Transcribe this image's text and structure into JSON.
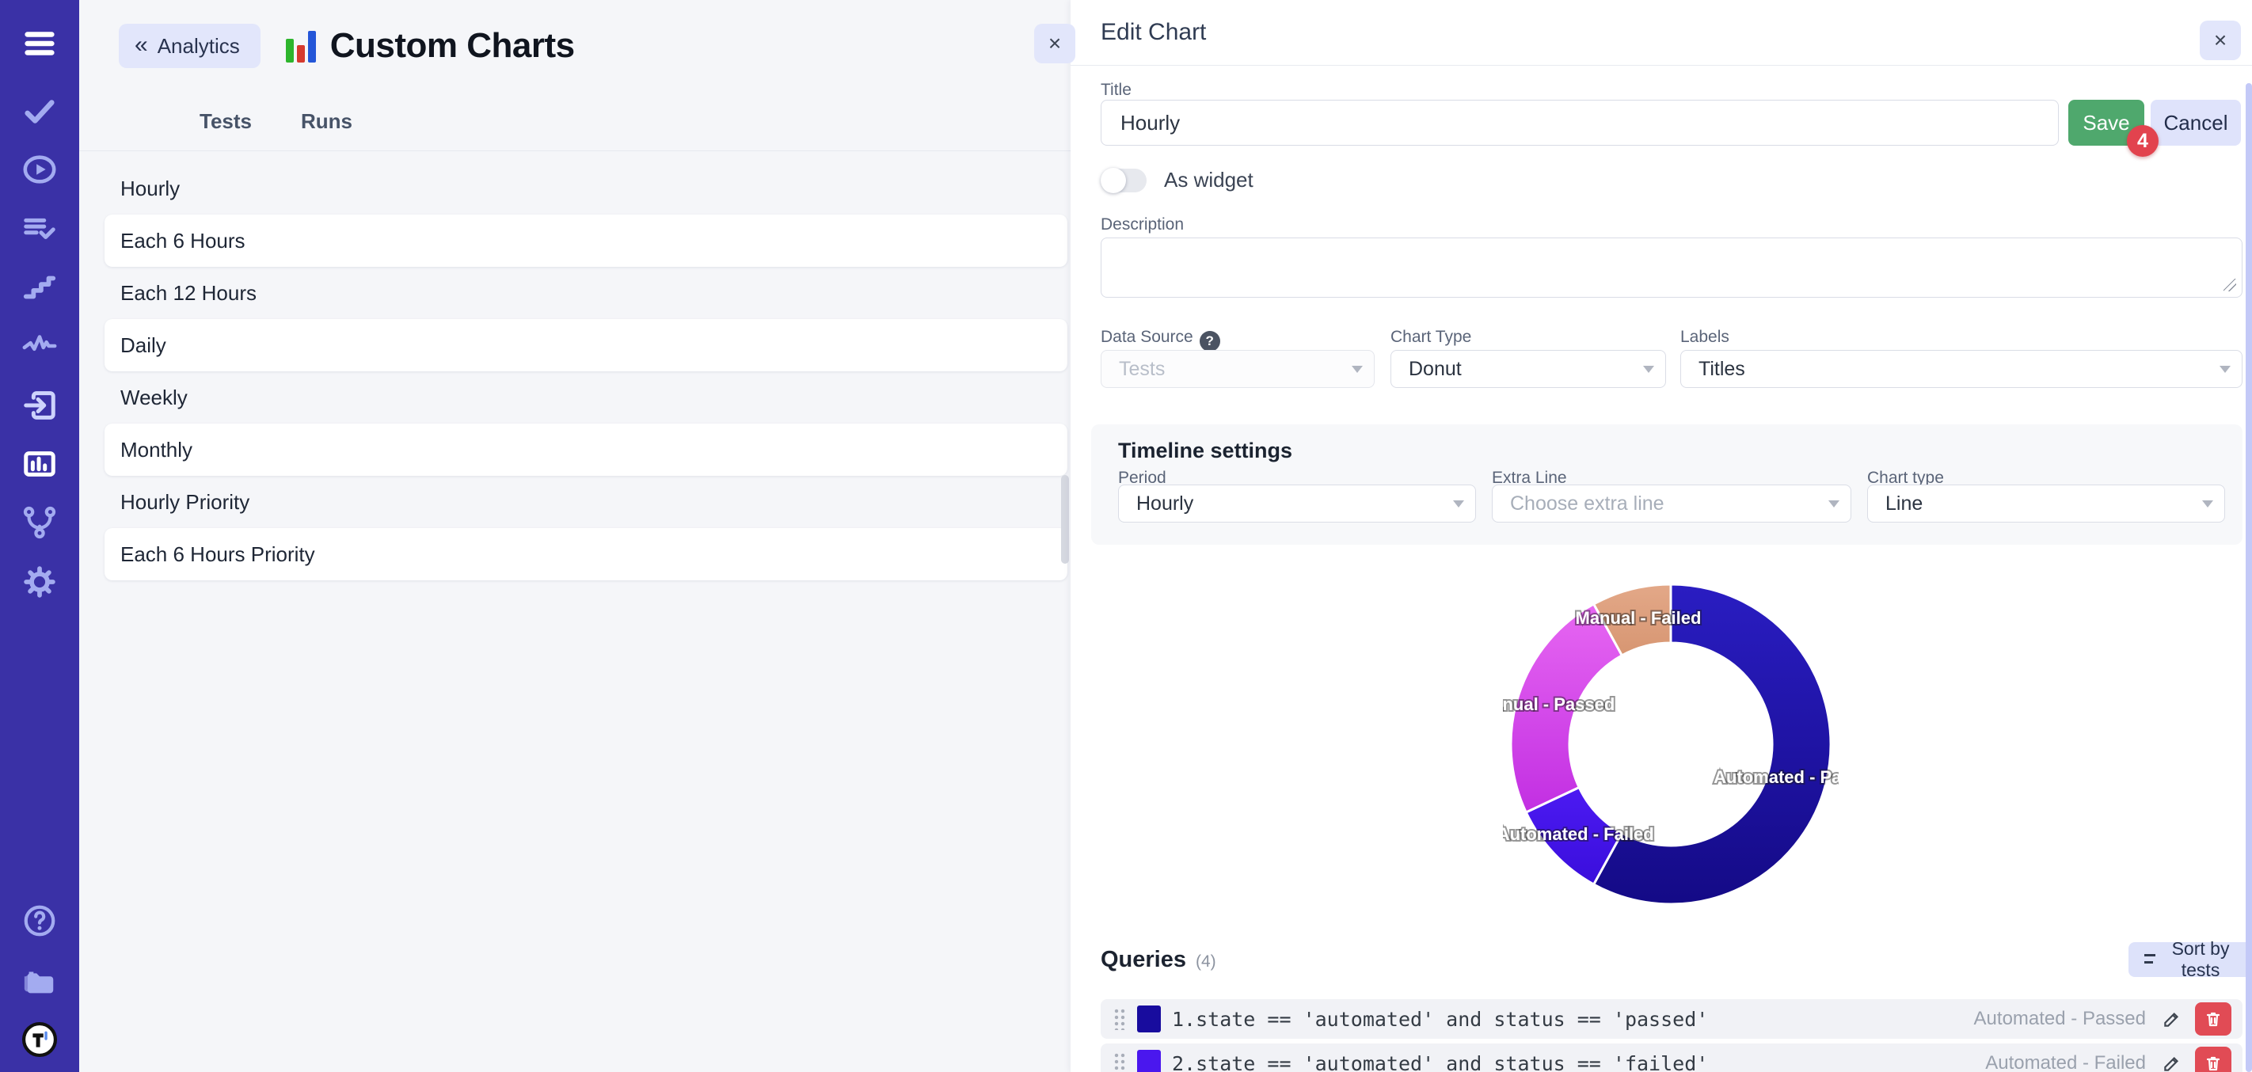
{
  "header": {
    "back_chevron": "«",
    "back_label": "Analytics",
    "title": "Custom Charts"
  },
  "tabs": [
    {
      "label": "Tests",
      "active": true
    },
    {
      "label": "Runs",
      "active": false
    }
  ],
  "charts_list": [
    "Hourly",
    "Each 6 Hours",
    "Each 12 Hours",
    "Daily",
    "Weekly",
    "Monthly",
    "Hourly Priority",
    "Each 6 Hours Priority"
  ],
  "left_pane": {
    "close_glyph": "×"
  },
  "sidebar_icons": [
    "hamburger-icon",
    "check-icon",
    "play-circle-icon",
    "list-check-icon",
    "steps-icon",
    "pulse-icon",
    "import-icon",
    "analytics-icon",
    "fork-icon",
    "gear-icon",
    "help-icon",
    "folder-icon",
    "logo-icon"
  ],
  "edit_panel": {
    "title": "Edit Chart",
    "close_glyph": "×",
    "fields": {
      "title_label": "Title",
      "title_value": "Hourly",
      "save_label": "Save",
      "cancel_label": "Cancel",
      "badge": "4",
      "as_widget_label": "As widget",
      "as_widget_on": false,
      "description_label": "Description",
      "description_value": "",
      "data_source_label": "Data Source",
      "data_source_help": "?",
      "data_source_value": "Tests",
      "chart_type_label": "Chart Type",
      "chart_type_value": "Donut",
      "labels_label": "Labels",
      "labels_value": "Titles"
    },
    "timeline": {
      "heading": "Timeline settings",
      "period_label": "Period",
      "period_value": "Hourly",
      "extra_line_label": "Extra Line",
      "extra_line_placeholder": "Choose extra line",
      "chart_type_label": "Chart type",
      "chart_type_value": "Line"
    },
    "queries": {
      "heading": "Queries",
      "count": "(4)",
      "sort_label": "Sort by tests",
      "items": [
        {
          "color": "#180c9e",
          "text": "1.state == 'automated' and status == 'passed'",
          "label": "Automated - Passed"
        },
        {
          "color": "#4a17ee",
          "text": "2.state == 'automated' and status == 'failed'",
          "label": "Automated - Failed"
        }
      ]
    }
  },
  "chart_data": {
    "type": "donut",
    "title": "Hourly",
    "labels": [
      "Automated - Passed",
      "Automated - Failed",
      "Manual - Passed",
      "Manual - Failed"
    ],
    "values": [
      58,
      10,
      24,
      8
    ],
    "unit": "percent (estimated from arc angles)",
    "colors": [
      [
        "#2a1dc2",
        "#140a86"
      ],
      [
        "#4c1af2",
        "#3a0edc"
      ],
      [
        "#e767f2",
        "#c22fe2"
      ],
      [
        "#e3a888",
        "#d79672"
      ]
    ],
    "label_color": "#ffffff",
    "legend": "none",
    "start_angle_deg": 0,
    "direction": "clockwise"
  },
  "colors": {
    "sidebar": "#3a31a6",
    "save_green": "#4fa86d",
    "badge_red": "#e2434e",
    "lavender": "#e1e5fb"
  }
}
